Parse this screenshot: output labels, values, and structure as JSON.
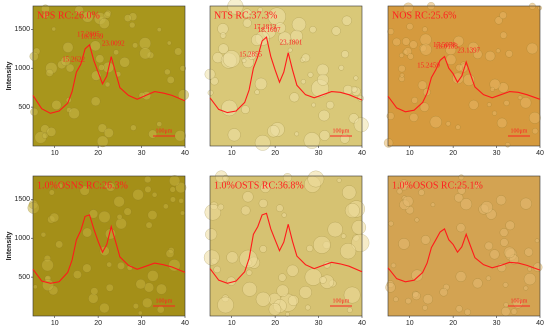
{
  "chart_data": [
    {
      "type": "line",
      "title": "NPS RC:26.0%",
      "x_label": "",
      "y_label": "Intensity",
      "scale_label": "100μm",
      "x": [
        5,
        7,
        9,
        11,
        13,
        14,
        15,
        16,
        17,
        18,
        19,
        20,
        21,
        22,
        23,
        24,
        25,
        27,
        29,
        31,
        33,
        35,
        37,
        40
      ],
      "values": [
        650,
        480,
        420,
        450,
        550,
        700,
        950,
        1050,
        1250,
        1300,
        1100,
        950,
        800,
        900,
        1150,
        950,
        750,
        650,
        600,
        650,
        700,
        680,
        650,
        580
      ],
      "peaks": [
        15.2622,
        17.2805,
        18.1259,
        23.0092
      ],
      "color": "#ff1a1a",
      "xlim": [
        5,
        40
      ],
      "ylim": [
        0,
        1800
      ],
      "xticks": [
        10,
        20,
        30,
        40
      ],
      "yticks": [
        500,
        1000,
        1500
      ]
    },
    {
      "type": "line",
      "title": "NTS RC:37.3%",
      "scale_label": "100μm",
      "x": [
        5,
        7,
        9,
        11,
        13,
        14,
        15,
        16,
        17,
        18,
        19,
        20,
        21,
        22,
        23,
        24,
        25,
        27,
        29,
        31,
        33,
        35,
        37,
        40
      ],
      "values": [
        620,
        470,
        430,
        450,
        560,
        720,
        1000,
        1150,
        1350,
        1400,
        1150,
        980,
        820,
        950,
        1200,
        980,
        780,
        660,
        620,
        660,
        700,
        690,
        660,
        590
      ],
      "peaks": [
        15.2855,
        17.1813,
        18.1607,
        23.1801
      ],
      "color": "#ff1a1a",
      "xlim": [
        5,
        40
      ],
      "ylim": [
        0,
        1800
      ],
      "xticks": [
        10,
        20,
        30,
        40
      ]
    },
    {
      "type": "line",
      "title": "NOS RC:25.6%",
      "scale_label": "100μm",
      "x": [
        5,
        7,
        9,
        11,
        13,
        14,
        15,
        16,
        17,
        18,
        19,
        20,
        21,
        22,
        23,
        24,
        25,
        27,
        29,
        31,
        33,
        35,
        37,
        40
      ],
      "values": [
        640,
        490,
        440,
        460,
        560,
        680,
        880,
        980,
        1100,
        1150,
        1000,
        930,
        820,
        900,
        1080,
        920,
        760,
        660,
        620,
        660,
        700,
        690,
        660,
        600
      ],
      "peaks": [
        15.2459,
        17.5078,
        18.0183,
        23.1397
      ],
      "color": "#ff1a1a",
      "xlim": [
        5,
        40
      ],
      "ylim": [
        0,
        1800
      ],
      "xticks": [
        10,
        20,
        30,
        40
      ]
    },
    {
      "type": "line",
      "title": "1.0%OSNS RC:26.3%",
      "y_label": "Intensity",
      "scale_label": "100μm",
      "x": [
        5,
        7,
        9,
        11,
        13,
        14,
        15,
        16,
        17,
        18,
        19,
        20,
        21,
        22,
        23,
        24,
        25,
        27,
        29,
        31,
        33,
        35,
        37,
        40
      ],
      "values": [
        600,
        450,
        420,
        440,
        560,
        720,
        980,
        1100,
        1280,
        1300,
        1120,
        960,
        820,
        920,
        1150,
        960,
        760,
        650,
        600,
        640,
        680,
        660,
        630,
        560
      ],
      "color": "#ff1a1a",
      "xlim": [
        5,
        40
      ],
      "ylim": [
        0,
        1800
      ],
      "xticks": [
        10,
        20,
        30,
        40
      ],
      "yticks": [
        500,
        1000,
        1500
      ]
    },
    {
      "type": "line",
      "title": "1.0%OSTS RC:36.8%",
      "scale_label": "100μm",
      "x": [
        5,
        7,
        9,
        11,
        13,
        14,
        15,
        16,
        17,
        18,
        19,
        20,
        21,
        22,
        23,
        24,
        25,
        27,
        29,
        31,
        33,
        35,
        37,
        40
      ],
      "values": [
        610,
        460,
        420,
        450,
        570,
        740,
        1050,
        1150,
        1300,
        1320,
        1120,
        980,
        840,
        950,
        1180,
        960,
        770,
        660,
        610,
        650,
        690,
        670,
        640,
        570
      ],
      "color": "#ff1a1a",
      "xlim": [
        5,
        40
      ],
      "ylim": [
        0,
        1800
      ],
      "xticks": [
        10,
        20,
        30,
        40
      ]
    },
    {
      "type": "line",
      "title": "1.0%OSOS RC:25.1%",
      "scale_label": "100μm",
      "x": [
        5,
        7,
        9,
        11,
        13,
        14,
        15,
        16,
        17,
        18,
        19,
        20,
        21,
        22,
        23,
        24,
        25,
        27,
        29,
        31,
        33,
        35,
        37,
        40
      ],
      "values": [
        620,
        480,
        440,
        460,
        560,
        680,
        880,
        980,
        1080,
        1120,
        980,
        920,
        820,
        890,
        1050,
        900,
        750,
        660,
        620,
        650,
        690,
        680,
        650,
        590
      ],
      "color": "#ff1a1a",
      "xlim": [
        5,
        40
      ],
      "ylim": [
        0,
        1800
      ],
      "xticks": [
        10,
        20,
        30,
        40
      ]
    }
  ]
}
